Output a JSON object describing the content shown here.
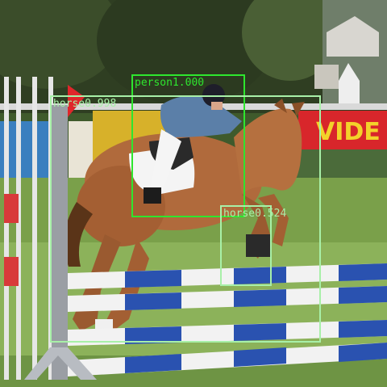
{
  "image": {
    "description_colors": {
      "sky_trees": "#3c4a2c",
      "grass": "#7aa04a",
      "horse": "#b06a3c",
      "banner": "#d7b12a",
      "pole_blue": "#2a52b0",
      "pole_white": "#f2f2f2"
    }
  },
  "detections": [
    {
      "label": "person1.000",
      "color": "#2ee62e"
    },
    {
      "label": "horse0.998",
      "color": "#a8f0a8"
    },
    {
      "label": "horse0.524",
      "color": "#a8f0a8"
    }
  ]
}
